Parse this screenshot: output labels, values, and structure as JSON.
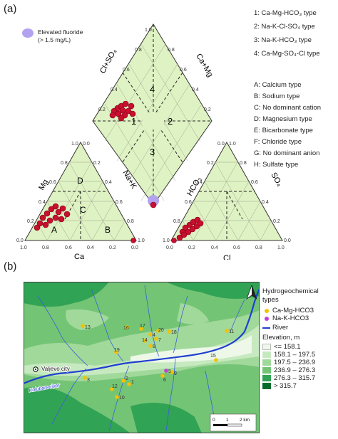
{
  "panel_a": {
    "label": "(a)",
    "elevated_fluoride": {
      "line1": "Elevated fluoride",
      "line2": "(> 1.5 mg/L)",
      "color": "#b3a2f0"
    },
    "water_types": [
      "1: Ca-Mg-HCO₃ type",
      "2: Na-K-Cl-SO₄ type",
      "3: Na-K-HCO₃ type",
      "4: Ca-Mg-SO₄-Cl type"
    ],
    "facies": [
      "A: Calcium type",
      "B: Sodium type",
      "C: No dominant cation",
      "D: Magnesium type",
      "E: Bicarbonate type",
      "F: Chloride type",
      "G: No dominant anion",
      "H: Sulfate type"
    ],
    "diamond": {
      "axis_left": "Cl+SO₄",
      "axis_right": "Ca+Mg",
      "regions": [
        "1",
        "2",
        "3",
        "4"
      ],
      "ticks_left": [
        "0.2",
        "0.4",
        "0.6",
        "0.8",
        "1.0"
      ],
      "ticks_right": [
        "0.2",
        "0.4",
        "0.6",
        "0.8",
        "1.0"
      ]
    },
    "cation_triangle": {
      "axis_mg": "Mg",
      "axis_nak": "Na+K",
      "axis_ca": "Ca",
      "regions": [
        "A",
        "B",
        "C",
        "D"
      ],
      "ticks_bottom": [
        "1.0",
        "0.8",
        "0.6",
        "0.4",
        "0.2",
        "0.0"
      ],
      "ticks_left": [
        "0.0",
        "0.2",
        "0.4",
        "0.6",
        "0.8",
        "1.0"
      ],
      "ticks_right": [
        "0.0",
        "0.2",
        "0.4",
        "0.6",
        "0.8",
        "1.0"
      ]
    },
    "anion_triangle": {
      "axis_hco3": "HCO₃",
      "axis_so4": "SO₄",
      "axis_cl": "Cl",
      "regions": [
        "E",
        "F",
        "G",
        "H"
      ],
      "ticks_bottom": [
        "0.0",
        "0.2",
        "0.4",
        "0.6",
        "0.8",
        "1.0"
      ],
      "ticks_left": [
        "0.0",
        "0.2",
        "0.4",
        "0.6",
        "0.8",
        "1.0"
      ],
      "ticks_right": [
        "0.0",
        "0.2",
        "0.4",
        "0.6",
        "0.8",
        "1.0"
      ]
    },
    "sample_color": "#c8102e"
  },
  "panel_b": {
    "label": "(b)",
    "legend": {
      "title": "Hydrogeochemical types",
      "series": [
        {
          "name": "Ca-Mg-HCO3",
          "color": "#f2c200"
        },
        {
          "name": "Na-K-HCO3",
          "color": "#c13fd6"
        }
      ],
      "river": {
        "name": "River",
        "color": "#1f3fd0"
      },
      "elevation_title": "Elevation, m",
      "elevation_classes": [
        {
          "label": "<= 158.1",
          "color": "#edf8e9"
        },
        {
          "label": "158.1 – 197.5",
          "color": "#c7e9c0"
        },
        {
          "label": "197.5 – 236.9",
          "color": "#a1d99b"
        },
        {
          "label": "236.9 – 276.3",
          "color": "#74c476"
        },
        {
          "label": "276.3 – 315.7",
          "color": "#31a354"
        },
        {
          "label": "> 315.7",
          "color": "#006d2c"
        }
      ]
    },
    "place_labels": {
      "city": "Valjevo city",
      "river": "Kolubara river"
    },
    "scale": {
      "zero": "0",
      "one": "1",
      "two": "2 km"
    },
    "sample_ids": [
      "1",
      "2",
      "3",
      "4",
      "5",
      "6",
      "7",
      "8",
      "9",
      "10",
      "11",
      "12",
      "13",
      "14",
      "15",
      "16",
      "17",
      "18",
      "19",
      "20"
    ]
  }
}
